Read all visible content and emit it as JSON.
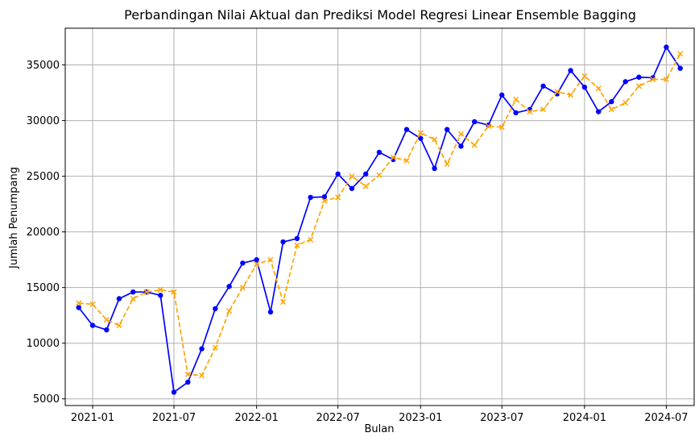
{
  "chart_data": {
    "type": "line",
    "title": "Perbandingan Nilai Aktual dan Prediksi Model Regresi Linear Ensemble Bagging",
    "xlabel": "Bulan",
    "ylabel": "Jumlah Penumpang",
    "x": [
      "2020-12",
      "2021-01",
      "2021-02",
      "2021-03",
      "2021-04",
      "2021-05",
      "2021-06",
      "2021-07",
      "2021-08",
      "2021-09",
      "2021-10",
      "2021-11",
      "2021-12",
      "2022-01",
      "2022-02",
      "2022-03",
      "2022-04",
      "2022-05",
      "2022-06",
      "2022-07",
      "2022-08",
      "2022-09",
      "2022-10",
      "2022-11",
      "2022-12",
      "2023-01",
      "2023-02",
      "2023-03",
      "2023-04",
      "2023-05",
      "2023-06",
      "2023-07",
      "2023-08",
      "2023-09",
      "2023-10",
      "2023-11",
      "2023-12",
      "2024-01",
      "2024-02",
      "2024-03",
      "2024-04",
      "2024-05",
      "2024-06",
      "2024-07",
      "2024-08"
    ],
    "xticks": [
      "2021-01",
      "2021-07",
      "2022-01",
      "2022-07",
      "2023-01",
      "2023-07",
      "2024-01",
      "2024-07"
    ],
    "yticks": [
      5000,
      10000,
      15000,
      20000,
      25000,
      30000,
      35000
    ],
    "xlim": [
      "2020-11-01",
      "2024-09-01"
    ],
    "ylim": [
      4400,
      38300
    ],
    "grid": true,
    "series": [
      {
        "style": "solid",
        "marker": "circle",
        "color": "#0000ff",
        "values": [
          13200,
          11600,
          11200,
          14000,
          14600,
          14600,
          14300,
          5600,
          6500,
          9500,
          13100,
          15100,
          17200,
          17500,
          12800,
          19100,
          19400,
          23100,
          23150,
          25200,
          23900,
          25200,
          27150,
          26500,
          29200,
          28400,
          25700,
          29200,
          27700,
          29900,
          29600,
          32300,
          30700,
          31000,
          33100,
          32400,
          34500,
          33000,
          30800,
          31700,
          33500,
          33900,
          33850,
          36600,
          34700
        ]
      },
      {
        "style": "dashed",
        "marker": "x",
        "color": "#ffa500",
        "values": [
          13600,
          13500,
          12100,
          11600,
          14000,
          14600,
          14800,
          14600,
          7200,
          7100,
          9600,
          12900,
          15000,
          17100,
          17500,
          13700,
          18800,
          19300,
          22800,
          23100,
          25000,
          24100,
          25100,
          26700,
          26400,
          28900,
          28300,
          26100,
          28800,
          27800,
          29500,
          29400,
          31900,
          30800,
          31000,
          32600,
          32300,
          34000,
          32900,
          31000,
          31600,
          33100,
          33700,
          33700,
          36000
        ]
      }
    ]
  }
}
